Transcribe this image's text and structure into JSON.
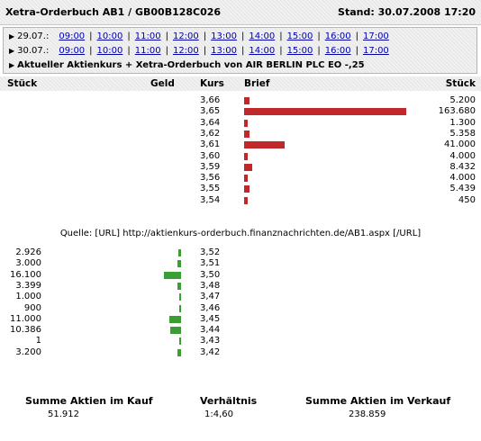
{
  "header": {
    "title": "Xetra-Orderbuch AB1 / GB00B128C026",
    "stand": "Stand: 30.07.2008 17:20"
  },
  "time_nav": {
    "rows": [
      {
        "date": "29.07.:",
        "times": [
          "09:00",
          "10:00",
          "11:00",
          "12:00",
          "13:00",
          "14:00",
          "15:00",
          "16:00",
          "17:00"
        ]
      },
      {
        "date": "30.07.:",
        "times": [
          "09:00",
          "10:00",
          "11:00",
          "12:00",
          "13:00",
          "14:00",
          "15:00",
          "16:00",
          "17:00"
        ]
      }
    ],
    "info": "Aktueller Aktienkurs + Xetra-Orderbuch von AIR BERLIN PLC EO -,25"
  },
  "columns": {
    "stueck_left": "Stück",
    "geld": "Geld",
    "kurs": "Kurs",
    "brief": "Brief",
    "stueck_right": "Stück"
  },
  "asks": [
    {
      "price": "3,66",
      "qty": "5.200",
      "value": 5200
    },
    {
      "price": "3,65",
      "qty": "163.680",
      "value": 163680
    },
    {
      "price": "3,64",
      "qty": "1.300",
      "value": 1300
    },
    {
      "price": "3,62",
      "qty": "5.358",
      "value": 5358
    },
    {
      "price": "3,61",
      "qty": "41.000",
      "value": 41000
    },
    {
      "price": "3,60",
      "qty": "4.000",
      "value": 4000
    },
    {
      "price": "3,59",
      "qty": "8.432",
      "value": 8432
    },
    {
      "price": "3,56",
      "qty": "4.000",
      "value": 4000
    },
    {
      "price": "3,55",
      "qty": "5.439",
      "value": 5439
    },
    {
      "price": "3,54",
      "qty": "450",
      "value": 450
    }
  ],
  "source": "Quelle: [URL] http://aktienkurs-orderbuch.finanznachrichten.de/AB1.aspx [/URL]",
  "bids": [
    {
      "price": "3,52",
      "qty": "2.926",
      "value": 2926
    },
    {
      "price": "3,51",
      "qty": "3.000",
      "value": 3000
    },
    {
      "price": "3,50",
      "qty": "16.100",
      "value": 16100
    },
    {
      "price": "3,48",
      "qty": "3.399",
      "value": 3399
    },
    {
      "price": "3,47",
      "qty": "1.000",
      "value": 1000
    },
    {
      "price": "3,46",
      "qty": "900",
      "value": 900
    },
    {
      "price": "3,45",
      "qty": "11.000",
      "value": 11000
    },
    {
      "price": "3,44",
      "qty": "10.386",
      "value": 10386
    },
    {
      "price": "3,43",
      "qty": "1",
      "value": 1
    },
    {
      "price": "3,42",
      "qty": "3.200",
      "value": 3200
    }
  ],
  "summary": {
    "kauf_label": "Summe Aktien im Kauf",
    "kauf_value": "51.912",
    "verh_label": "Verhältnis",
    "verh_value": "1:4,60",
    "verkauf_label": "Summe Aktien im Verkauf",
    "verkauf_value": "238.859"
  },
  "colors": {
    "ask_bar": "#c0282c",
    "bid_bar": "#3b9e34",
    "link": "#0000aa"
  }
}
